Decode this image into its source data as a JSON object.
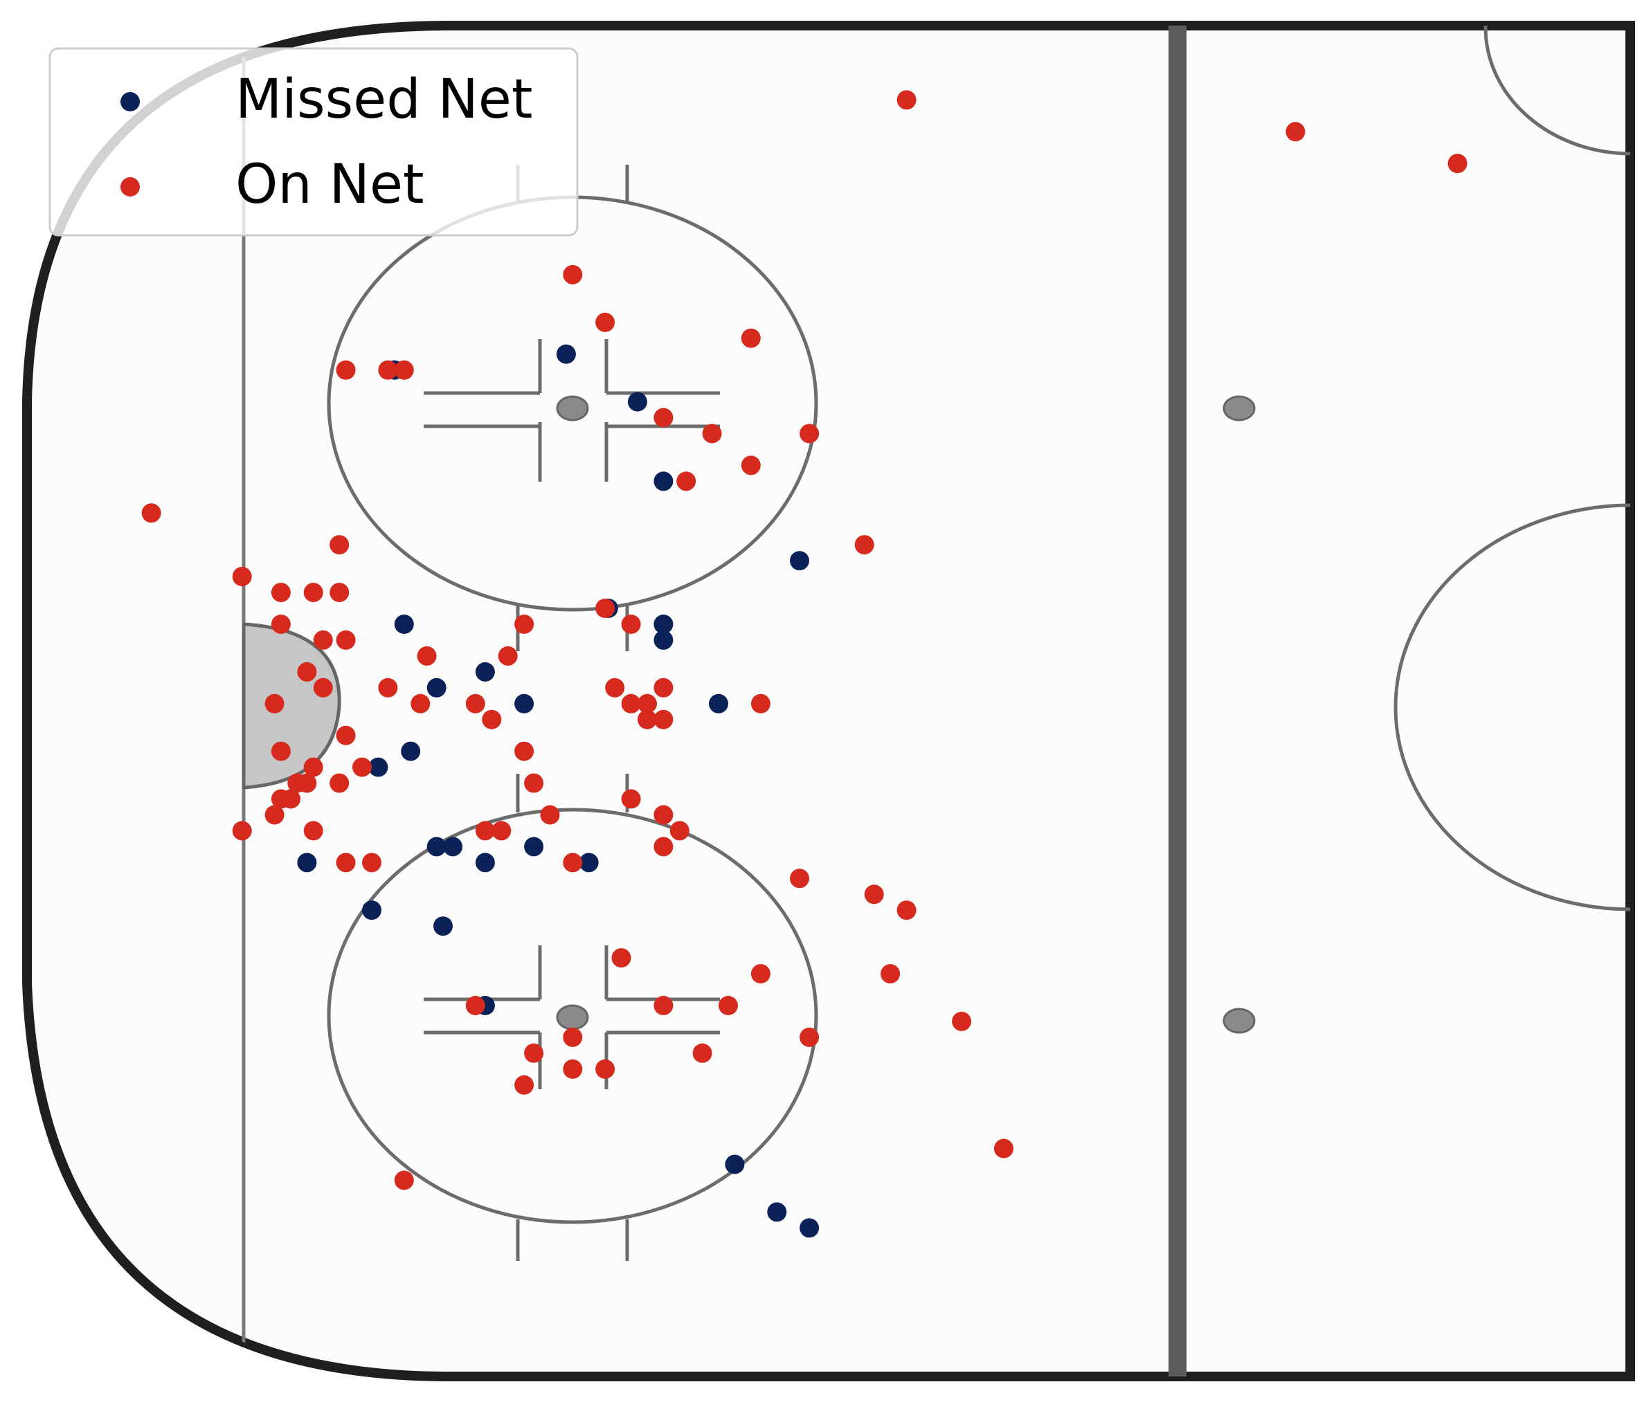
{
  "chart_data": {
    "type": "scatter",
    "title": "",
    "xlabel": "",
    "ylabel": "",
    "xlim": [
      0,
      1000
    ],
    "ylim": [
      0,
      852
    ],
    "legend": {
      "position": "top-left"
    },
    "series": [
      {
        "name": "Missed Net",
        "color": "#0b2258",
        "points": [
          {
            "x": 234,
            "y": 630
          },
          {
            "x": 340,
            "y": 640
          },
          {
            "x": 224,
            "y": 380
          },
          {
            "x": 244,
            "y": 390
          },
          {
            "x": 384,
            "y": 610
          },
          {
            "x": 400,
            "y": 560
          },
          {
            "x": 484,
            "y": 510
          },
          {
            "x": 366,
            "y": 480
          },
          {
            "x": 400,
            "y": 470
          },
          {
            "x": 400,
            "y": 460
          },
          {
            "x": 240,
            "y": 470
          },
          {
            "x": 290,
            "y": 440
          },
          {
            "x": 260,
            "y": 430
          },
          {
            "x": 314,
            "y": 420
          },
          {
            "x": 434,
            "y": 420
          },
          {
            "x": 320,
            "y": 330
          },
          {
            "x": 260,
            "y": 330
          },
          {
            "x": 270,
            "y": 330
          },
          {
            "x": 290,
            "y": 320
          },
          {
            "x": 354,
            "y": 320
          },
          {
            "x": 180,
            "y": 320
          },
          {
            "x": 220,
            "y": 290
          },
          {
            "x": 264,
            "y": 280
          },
          {
            "x": 290,
            "y": 230
          },
          {
            "x": 444,
            "y": 130
          },
          {
            "x": 470,
            "y": 100
          },
          {
            "x": 490,
            "y": 90
          }
        ]
      },
      {
        "name": "On Net",
        "color": "#d62a1e",
        "points": [
          {
            "x": 550,
            "y": 800
          },
          {
            "x": 790,
            "y": 780
          },
          {
            "x": 890,
            "y": 760
          },
          {
            "x": 344,
            "y": 690
          },
          {
            "x": 364,
            "y": 660
          },
          {
            "x": 204,
            "y": 630
          },
          {
            "x": 230,
            "y": 630
          },
          {
            "x": 240,
            "y": 630
          },
          {
            "x": 454,
            "y": 650
          },
          {
            "x": 400,
            "y": 600
          },
          {
            "x": 430,
            "y": 590
          },
          {
            "x": 490,
            "y": 590
          },
          {
            "x": 454,
            "y": 570
          },
          {
            "x": 414,
            "y": 560
          },
          {
            "x": 84,
            "y": 540
          },
          {
            "x": 200,
            "y": 520
          },
          {
            "x": 524,
            "y": 520
          },
          {
            "x": 140,
            "y": 500
          },
          {
            "x": 164,
            "y": 490
          },
          {
            "x": 184,
            "y": 490
          },
          {
            "x": 200,
            "y": 490
          },
          {
            "x": 164,
            "y": 470
          },
          {
            "x": 190,
            "y": 460
          },
          {
            "x": 204,
            "y": 460
          },
          {
            "x": 314,
            "y": 470
          },
          {
            "x": 364,
            "y": 480
          },
          {
            "x": 380,
            "y": 470
          },
          {
            "x": 180,
            "y": 440
          },
          {
            "x": 190,
            "y": 430
          },
          {
            "x": 160,
            "y": 420
          },
          {
            "x": 230,
            "y": 430
          },
          {
            "x": 250,
            "y": 420
          },
          {
            "x": 284,
            "y": 420
          },
          {
            "x": 390,
            "y": 420
          },
          {
            "x": 400,
            "y": 430
          },
          {
            "x": 370,
            "y": 430
          },
          {
            "x": 380,
            "y": 420
          },
          {
            "x": 390,
            "y": 410
          },
          {
            "x": 400,
            "y": 410
          },
          {
            "x": 460,
            "y": 420
          },
          {
            "x": 204,
            "y": 400
          },
          {
            "x": 164,
            "y": 390
          },
          {
            "x": 184,
            "y": 380
          },
          {
            "x": 180,
            "y": 370
          },
          {
            "x": 164,
            "y": 360
          },
          {
            "x": 160,
            "y": 350
          },
          {
            "x": 170,
            "y": 360
          },
          {
            "x": 174,
            "y": 370
          },
          {
            "x": 200,
            "y": 370
          },
          {
            "x": 140,
            "y": 340
          },
          {
            "x": 184,
            "y": 340
          },
          {
            "x": 294,
            "y": 410
          },
          {
            "x": 314,
            "y": 390
          },
          {
            "x": 320,
            "y": 370
          },
          {
            "x": 330,
            "y": 350
          },
          {
            "x": 220,
            "y": 320
          },
          {
            "x": 204,
            "y": 320
          },
          {
            "x": 214,
            "y": 380
          },
          {
            "x": 254,
            "y": 450
          },
          {
            "x": 304,
            "y": 450
          },
          {
            "x": 290,
            "y": 340
          },
          {
            "x": 300,
            "y": 340
          },
          {
            "x": 344,
            "y": 320
          },
          {
            "x": 400,
            "y": 330
          },
          {
            "x": 410,
            "y": 340
          },
          {
            "x": 380,
            "y": 360
          },
          {
            "x": 400,
            "y": 350
          },
          {
            "x": 484,
            "y": 310
          },
          {
            "x": 530,
            "y": 300
          },
          {
            "x": 550,
            "y": 290
          },
          {
            "x": 584,
            "y": 220
          },
          {
            "x": 440,
            "y": 230
          },
          {
            "x": 460,
            "y": 250
          },
          {
            "x": 540,
            "y": 250
          },
          {
            "x": 490,
            "y": 210
          },
          {
            "x": 424,
            "y": 200
          },
          {
            "x": 364,
            "y": 190
          },
          {
            "x": 320,
            "y": 200
          },
          {
            "x": 344,
            "y": 190
          },
          {
            "x": 344,
            "y": 210
          },
          {
            "x": 314,
            "y": 180
          },
          {
            "x": 284,
            "y": 230
          },
          {
            "x": 374,
            "y": 260
          },
          {
            "x": 400,
            "y": 230
          },
          {
            "x": 240,
            "y": 120
          },
          {
            "x": 610,
            "y": 140
          }
        ]
      }
    ]
  }
}
